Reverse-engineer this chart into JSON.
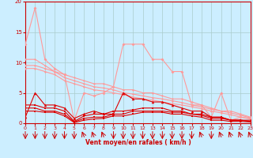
{
  "title": "",
  "xlabel": "Vent moyen/en rafales ( km/h )",
  "xlim": [
    0,
    23
  ],
  "ylim": [
    0,
    20
  ],
  "yticks": [
    0,
    5,
    10,
    15,
    20
  ],
  "xticks": [
    0,
    1,
    2,
    3,
    4,
    5,
    6,
    7,
    8,
    9,
    10,
    11,
    12,
    13,
    14,
    15,
    16,
    17,
    18,
    19,
    20,
    21,
    22,
    23
  ],
  "background_color": "#cceeff",
  "grid_color": "#aacccc",
  "lines": [
    {
      "x": [
        0,
        1,
        2,
        3,
        4,
        5,
        6,
        7,
        8,
        9,
        10,
        11,
        12,
        13,
        14,
        15,
        16,
        17,
        18,
        19,
        20,
        21,
        22,
        23
      ],
      "y": [
        13,
        19,
        10.5,
        9,
        8,
        0.5,
        5,
        4.5,
        5,
        6,
        13,
        13,
        13,
        10.5,
        10.5,
        8.5,
        8.5,
        3,
        3,
        1,
        5,
        0.5,
        1,
        0.8
      ],
      "color": "#ff9999",
      "lw": 0.8,
      "marker": "D",
      "ms": 2.0
    },
    {
      "x": [
        0,
        1,
        2,
        3,
        4,
        5,
        6,
        7,
        8,
        9,
        10,
        11,
        12,
        13,
        14,
        15,
        16,
        17,
        18,
        19,
        20,
        21,
        22,
        23
      ],
      "y": [
        10.5,
        10.5,
        9.5,
        8.5,
        8,
        7.5,
        7,
        6.5,
        6.5,
        6,
        5.5,
        5.5,
        5,
        5,
        4.5,
        4,
        4,
        3.5,
        3,
        2.5,
        2,
        2,
        1.5,
        1
      ],
      "color": "#ff9999",
      "lw": 0.8,
      "marker": "D",
      "ms": 1.5
    },
    {
      "x": [
        0,
        1,
        2,
        3,
        4,
        5,
        6,
        7,
        8,
        9,
        10,
        11,
        12,
        13,
        14,
        15,
        16,
        17,
        18,
        19,
        20,
        21,
        22,
        23
      ],
      "y": [
        9.5,
        9.5,
        9,
        8.5,
        7.5,
        7,
        6.5,
        6,
        5.8,
        5.5,
        5,
        4.8,
        4.5,
        4.2,
        4,
        3.7,
        3.4,
        3,
        2.7,
        2.3,
        2,
        1.7,
        1.3,
        0.9
      ],
      "color": "#ff9999",
      "lw": 0.8,
      "marker": "D",
      "ms": 1.5
    },
    {
      "x": [
        0,
        1,
        2,
        3,
        4,
        5,
        6,
        7,
        8,
        9,
        10,
        11,
        12,
        13,
        14,
        15,
        16,
        17,
        18,
        19,
        20,
        21,
        22,
        23
      ],
      "y": [
        9,
        9,
        8.5,
        8,
        7,
        6.5,
        6,
        5.5,
        5.3,
        5,
        4.7,
        4.3,
        4,
        3.8,
        3.5,
        3.2,
        3,
        2.7,
        2.4,
        2,
        1.7,
        1.4,
        1,
        0.7
      ],
      "color": "#ff9999",
      "lw": 0.8,
      "marker": "D",
      "ms": 1.5
    },
    {
      "x": [
        0,
        1,
        2,
        3,
        4,
        5,
        6,
        7,
        8,
        9,
        10,
        11,
        12,
        13,
        14,
        15,
        16,
        17,
        18,
        19,
        20,
        21,
        22,
        23
      ],
      "y": [
        1,
        5,
        3,
        3,
        2.5,
        0.8,
        1.5,
        2,
        1.5,
        1.5,
        5,
        4,
        4,
        3.5,
        3.5,
        3,
        2.5,
        2,
        2,
        1,
        1,
        0.5,
        0.5,
        0.5
      ],
      "color": "#dd0000",
      "lw": 0.8,
      "marker": "^",
      "ms": 2.5
    },
    {
      "x": [
        0,
        1,
        2,
        3,
        4,
        5,
        6,
        7,
        8,
        9,
        10,
        11,
        12,
        13,
        14,
        15,
        16,
        17,
        18,
        19,
        20,
        21,
        22,
        23
      ],
      "y": [
        3,
        3,
        2.5,
        2.5,
        2,
        0.3,
        1.2,
        1.5,
        1.5,
        2,
        2,
        2.2,
        2.5,
        2.5,
        2.5,
        2,
        2,
        1.5,
        1.5,
        1,
        1,
        0.5,
        0.5,
        0.3
      ],
      "color": "#dd0000",
      "lw": 0.8,
      "marker": "s",
      "ms": 1.8
    },
    {
      "x": [
        0,
        1,
        2,
        3,
        4,
        5,
        6,
        7,
        8,
        9,
        10,
        11,
        12,
        13,
        14,
        15,
        16,
        17,
        18,
        19,
        20,
        21,
        22,
        23
      ],
      "y": [
        2.5,
        2.5,
        2,
        2,
        1.5,
        0.2,
        0.8,
        1,
        1,
        1.5,
        1.5,
        2,
        2,
        2,
        2,
        1.8,
        1.8,
        1.5,
        1.3,
        0.8,
        0.8,
        0.5,
        0.5,
        0.3
      ],
      "color": "#dd0000",
      "lw": 0.8,
      "marker": "s",
      "ms": 1.8
    },
    {
      "x": [
        0,
        1,
        2,
        3,
        4,
        5,
        6,
        7,
        8,
        9,
        10,
        11,
        12,
        13,
        14,
        15,
        16,
        17,
        18,
        19,
        20,
        21,
        22,
        23
      ],
      "y": [
        2,
        2,
        1.8,
        1.8,
        1.2,
        0.1,
        0.5,
        0.7,
        0.8,
        1.2,
        1.2,
        1.5,
        1.8,
        1.8,
        1.8,
        1.5,
        1.5,
        1.2,
        1,
        0.5,
        0.5,
        0.3,
        0.3,
        0.2
      ],
      "color": "#dd0000",
      "lw": 0.8,
      "marker": "s",
      "ms": 1.8
    }
  ],
  "arrows_down": [
    0,
    1,
    2,
    3,
    4,
    5,
    9,
    10,
    11,
    12,
    13,
    14,
    15,
    16,
    17,
    19
  ],
  "arrows_upleft": [
    6,
    7,
    8,
    18,
    20,
    21,
    22,
    23
  ]
}
